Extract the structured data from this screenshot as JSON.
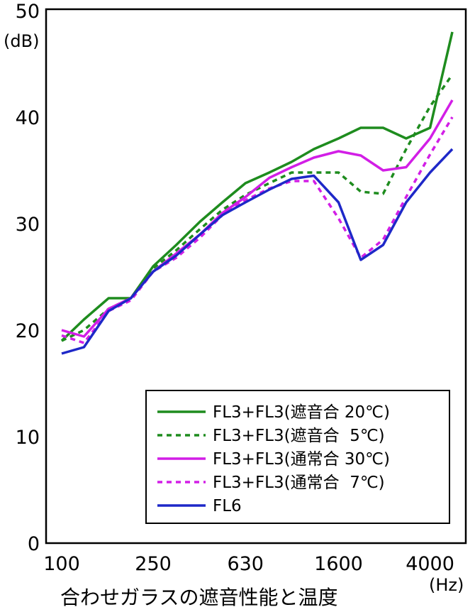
{
  "chart_data": {
    "type": "line",
    "xlabel": "合わせガラスの遮音性能と温度",
    "x_unit": "(Hz)",
    "y_unit": "(dB)",
    "x_scale": "log",
    "ylim": [
      0,
      50
    ],
    "yticks": [
      0,
      10,
      20,
      30,
      40,
      50
    ],
    "xticks": [
      {
        "value": 100,
        "label": "100"
      },
      {
        "value": 250,
        "label": "250"
      },
      {
        "value": 630,
        "label": "630"
      },
      {
        "value": 1600,
        "label": "1600"
      },
      {
        "value": 4000,
        "label": "4000"
      }
    ],
    "x": [
      100,
      125,
      160,
      200,
      250,
      315,
      400,
      500,
      630,
      800,
      1000,
      1250,
      1600,
      2000,
      2500,
      3150,
      4000,
      5000
    ],
    "grid": false,
    "legend_position": "bottom-right",
    "series": [
      {
        "name": "FL3+FL3(遮音合 20℃)",
        "color": "#1e8c1e",
        "dash": "solid",
        "values": [
          19.0,
          21.0,
          23.0,
          23.0,
          26.0,
          28.0,
          30.2,
          32.0,
          33.8,
          34.8,
          35.8,
          37.0,
          38.0,
          39.0,
          39.0,
          38.0,
          39.0,
          48.0
        ]
      },
      {
        "name": "FL3+FL3(遮音合  5℃)",
        "color": "#1e8c1e",
        "dash": "dashed",
        "values": [
          19.0,
          20.0,
          22.0,
          23.0,
          25.8,
          27.5,
          29.5,
          31.3,
          32.7,
          33.8,
          34.8,
          34.8,
          34.8,
          33.0,
          32.8,
          37.0,
          41.0,
          44.0
        ]
      },
      {
        "name": "FL3+FL3(通常合 30℃)",
        "color": "#d21ee6",
        "dash": "solid",
        "values": [
          20.0,
          19.4,
          22.0,
          23.0,
          25.5,
          27.2,
          29.0,
          31.0,
          32.5,
          34.3,
          35.3,
          36.2,
          36.8,
          36.4,
          35.0,
          35.3,
          38.0,
          41.6
        ]
      },
      {
        "name": "FL3+FL3(通常合  7℃)",
        "color": "#d21ee6",
        "dash": "dashed",
        "values": [
          19.5,
          18.8,
          21.8,
          22.8,
          25.5,
          26.8,
          28.7,
          30.8,
          32.2,
          33.3,
          34.0,
          34.0,
          30.5,
          26.8,
          28.5,
          32.5,
          36.5,
          40.0
        ]
      },
      {
        "name": "FL6",
        "color": "#1e28c8",
        "dash": "solid",
        "values": [
          17.8,
          18.4,
          21.8,
          23.0,
          25.5,
          27.0,
          29.0,
          30.8,
          32.0,
          33.2,
          34.2,
          34.5,
          32.0,
          26.6,
          28.0,
          32.0,
          34.8,
          37.0
        ]
      }
    ]
  }
}
